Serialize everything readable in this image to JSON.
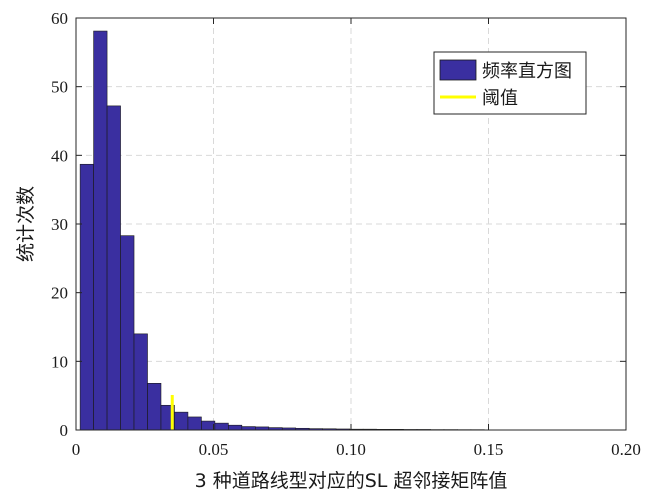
{
  "chart_data": {
    "type": "bar",
    "title": "",
    "xlabel": "3 种道路线型对应的SL 超邻接矩阵值",
    "ylabel": "统计次数",
    "xlim": [
      0,
      0.2
    ],
    "ylim": [
      0,
      60
    ],
    "x_ticks": [
      0,
      0.05,
      0.1,
      0.15,
      0.2
    ],
    "x_tick_labels": [
      "0",
      "0.05",
      "0.10",
      "0.15",
      "0.20"
    ],
    "y_ticks": [
      0,
      10,
      20,
      30,
      40,
      50,
      60
    ],
    "y_tick_labels": [
      "0",
      "10",
      "20",
      "30",
      "40",
      "50",
      "60"
    ],
    "grid": true,
    "legend_position": "top-right",
    "bar_color": "#3a2fa0",
    "threshold_color": "#ffff00",
    "bin_edges_start": 0.0015,
    "bin_width": 0.0049,
    "values": [
      38.7,
      58.1,
      47.2,
      28.3,
      14.0,
      6.8,
      3.6,
      2.6,
      1.9,
      1.3,
      1.0,
      0.7,
      0.5,
      0.45,
      0.35,
      0.3,
      0.25,
      0.2,
      0.18,
      0.15,
      0.12,
      0.12,
      0.1,
      0.1,
      0.08,
      0.08,
      0.06,
      0.06,
      0.05,
      0.05
    ],
    "threshold": {
      "x": 0.035,
      "y_top": 5.1
    },
    "series": [
      {
        "name": "频率直方图",
        "kind": "histogram"
      },
      {
        "name": "阈值",
        "kind": "line"
      }
    ]
  }
}
